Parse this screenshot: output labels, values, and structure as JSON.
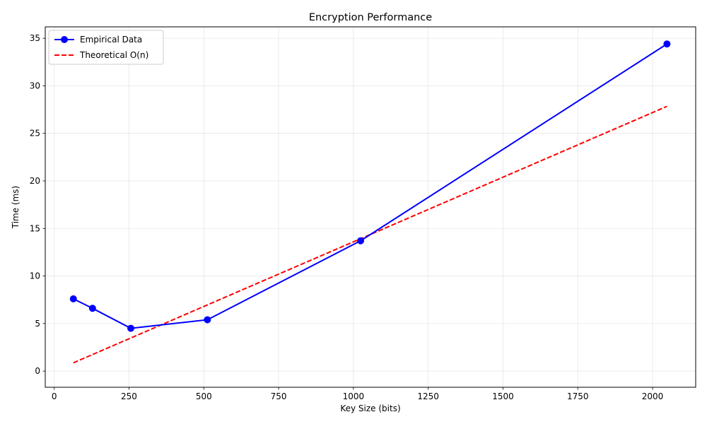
{
  "chart_data": {
    "type": "line",
    "title": "Encryption Performance",
    "xlabel": "Key Size (bits)",
    "ylabel": "Time (ms)",
    "xlim": [
      -30,
      2144
    ],
    "ylim": [
      -1.7,
      36.2
    ],
    "xticks": [
      0,
      250,
      500,
      750,
      1000,
      1250,
      1500,
      1750,
      2000
    ],
    "yticks": [
      0,
      5,
      10,
      15,
      20,
      25,
      30,
      35
    ],
    "grid": true,
    "legend_position": "upper left",
    "series": [
      {
        "name": "Empirical Data",
        "style": "solid",
        "marker": "circle",
        "color": "#0000ff",
        "x": [
          64,
          128,
          256,
          512,
          1024,
          2048
        ],
        "y": [
          7.6,
          6.6,
          4.5,
          5.4,
          13.7,
          34.4
        ]
      },
      {
        "name": "Theoretical O(n)",
        "style": "dashed",
        "marker": "none",
        "color": "#ff0000",
        "x": [
          64,
          128,
          256,
          512,
          1024,
          2048
        ],
        "y": [
          0.87,
          1.74,
          3.48,
          6.96,
          13.92,
          27.84
        ]
      }
    ]
  }
}
